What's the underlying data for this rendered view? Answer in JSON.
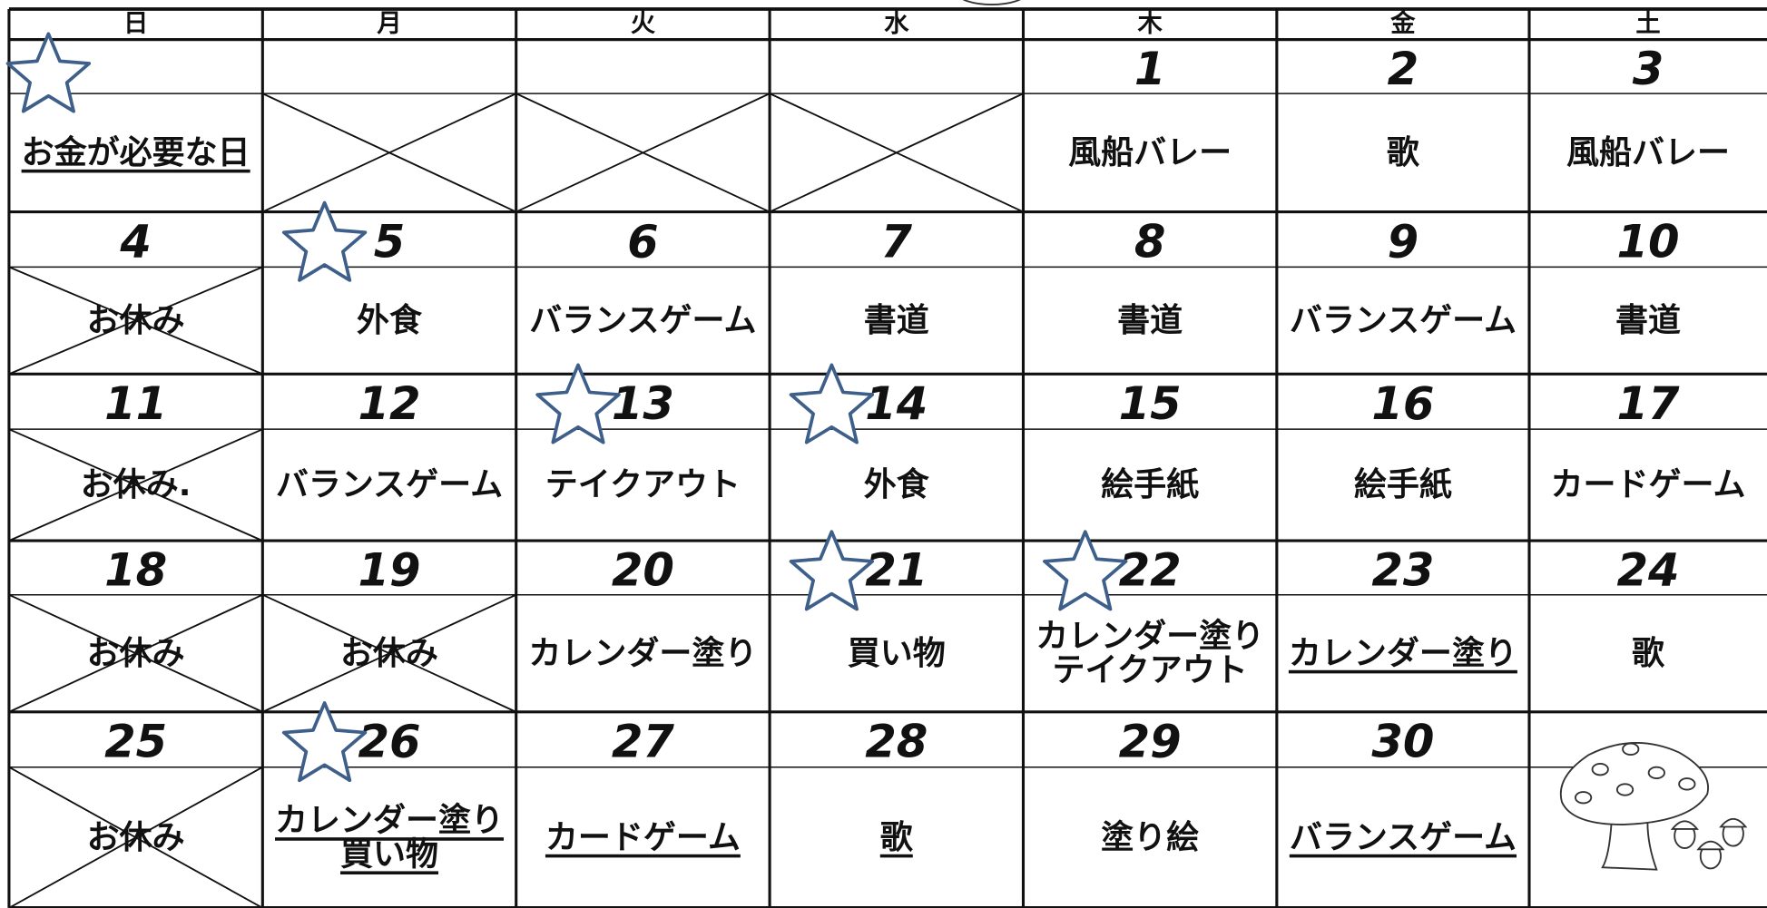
{
  "header": {
    "days": [
      "日",
      "月",
      "火",
      "水",
      "木",
      "金",
      "土"
    ]
  },
  "weeks": [
    [
      {
        "activity": [
          "お金が必要な日"
        ],
        "underline": true,
        "star": true
      },
      {
        "crossed": true
      },
      {
        "crossed": true
      },
      {
        "crossed": true
      },
      {
        "day": "1",
        "activity": [
          "風船バレー"
        ]
      },
      {
        "day": "2",
        "activity": [
          "歌"
        ]
      },
      {
        "day": "3",
        "activity": [
          "風船バレー"
        ]
      }
    ],
    [
      {
        "day": "4",
        "activity": [
          "お休み"
        ],
        "crossed": true
      },
      {
        "day": "5",
        "activity": [
          "外食"
        ],
        "star": true
      },
      {
        "day": "6",
        "activity": [
          "バランスゲーム"
        ]
      },
      {
        "day": "7",
        "activity": [
          "書道"
        ]
      },
      {
        "day": "8",
        "activity": [
          "書道"
        ]
      },
      {
        "day": "9",
        "activity": [
          "バランスゲーム"
        ]
      },
      {
        "day": "10",
        "activity": [
          "書道"
        ]
      }
    ],
    [
      {
        "day": "11",
        "activity": [
          "お休み."
        ],
        "crossed": true
      },
      {
        "day": "12",
        "activity": [
          "バランスゲーム"
        ]
      },
      {
        "day": "13",
        "activity": [
          "テイクアウト"
        ],
        "star": true
      },
      {
        "day": "14",
        "activity": [
          "外食"
        ],
        "star": true
      },
      {
        "day": "15",
        "activity": [
          "絵手紙"
        ]
      },
      {
        "day": "16",
        "activity": [
          "絵手紙"
        ]
      },
      {
        "day": "17",
        "activity": [
          "カードゲーム"
        ]
      }
    ],
    [
      {
        "day": "18",
        "activity": [
          "お休み"
        ],
        "crossed": true
      },
      {
        "day": "19",
        "activity": [
          "お休み"
        ],
        "crossed": true
      },
      {
        "day": "20",
        "activity": [
          "カレンダー塗り"
        ]
      },
      {
        "day": "21",
        "activity": [
          "買い物"
        ],
        "star": true
      },
      {
        "day": "22",
        "activity": [
          "カレンダー塗り",
          "テイクアウト"
        ],
        "star": true
      },
      {
        "day": "23",
        "activity": [
          "カレンダー塗り"
        ],
        "underline": true
      },
      {
        "day": "24",
        "activity": [
          "歌"
        ]
      }
    ],
    [
      {
        "day": "25",
        "activity": [
          "お休み"
        ],
        "crossed": true
      },
      {
        "day": "26",
        "activity": [
          "カレンダー塗り",
          "買い物"
        ],
        "underline": true,
        "star": true
      },
      {
        "day": "27",
        "activity": [
          "カードゲーム"
        ],
        "underline": true
      },
      {
        "day": "28",
        "activity": [
          "歌"
        ],
        "underline": true
      },
      {
        "day": "29",
        "activity": [
          "塗り絵"
        ]
      },
      {
        "day": "30",
        "activity": [
          "バランスゲーム"
        ],
        "underline": true
      },
      {}
    ]
  ]
}
